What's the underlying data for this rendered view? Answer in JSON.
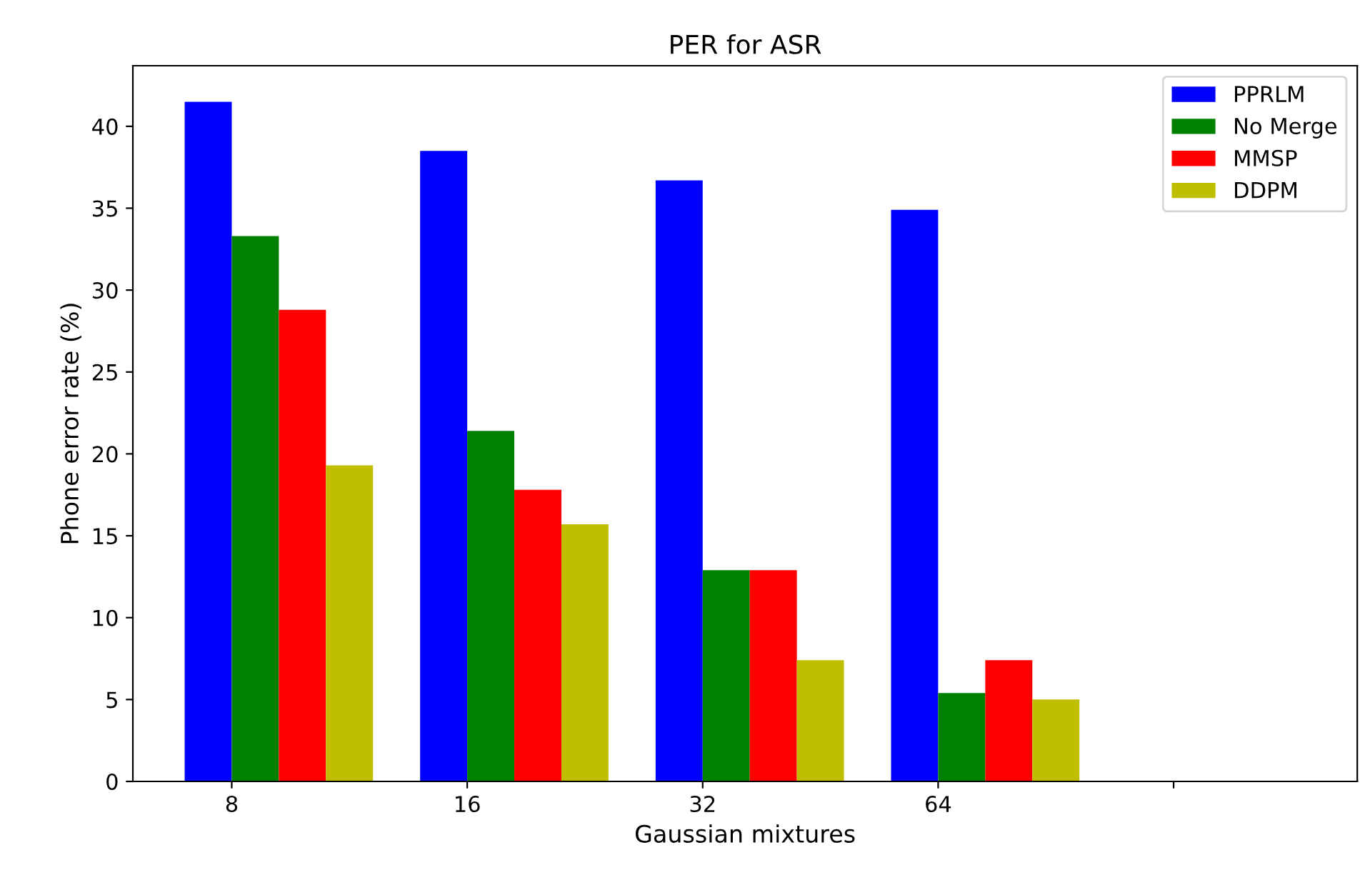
{
  "chart_data": {
    "type": "bar",
    "title": "PER for ASR",
    "xlabel": "Gaussian mixtures",
    "ylabel": "Phone error rate (%)",
    "categories": [
      "8",
      "16",
      "32",
      "64",
      null
    ],
    "series": [
      {
        "name": "PPRLM",
        "color": "#0000ff",
        "values": [
          41.5,
          38.5,
          36.7,
          34.9,
          null
        ]
      },
      {
        "name": "No Merge",
        "color": "#008000",
        "values": [
          33.3,
          21.4,
          12.9,
          5.4,
          null
        ]
      },
      {
        "name": "MMSP",
        "color": "#ff0000",
        "values": [
          28.8,
          17.8,
          12.9,
          7.4,
          null
        ]
      },
      {
        "name": "DDPM",
        "color": "#bfbf00",
        "values": [
          19.3,
          15.7,
          7.4,
          5.0,
          null
        ]
      }
    ],
    "ylim": [
      0,
      43.7
    ],
    "yticks": [
      0,
      5,
      10,
      15,
      20,
      25,
      30,
      35,
      40
    ],
    "grid": false,
    "legend": "top right"
  }
}
